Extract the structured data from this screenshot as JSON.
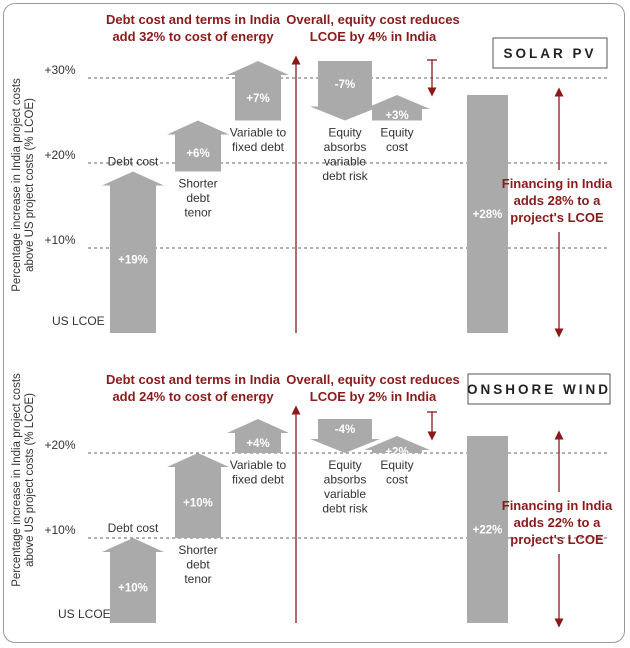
{
  "colors": {
    "bar": "#aaaaaa",
    "annotation": "#8b1a1a",
    "grid": "#666666",
    "text": "#333333",
    "bar_label": "#ffffff"
  },
  "ylabel": [
    "Percentage increase in India project costs",
    "above US project costs (% LCOE)"
  ],
  "chart_data": [
    {
      "type": "waterfall",
      "panel_title": "SOLAR PV",
      "ylim": [
        0,
        30
      ],
      "ticks": [
        {
          "value": 10,
          "label": "+10%"
        },
        {
          "value": 20,
          "label": "+20%"
        },
        {
          "value": 30,
          "label": "+30%"
        }
      ],
      "base_label": "US LCOE",
      "steps": [
        {
          "name": [
            "Debt cost"
          ],
          "value": 19,
          "label": "+19%",
          "label_side": "above"
        },
        {
          "name": [
            "Shorter",
            "debt",
            "tenor"
          ],
          "value": 6,
          "label": "+6%",
          "label_side": "below"
        },
        {
          "name": [
            "Variable to",
            "fixed debt"
          ],
          "value": 7,
          "label": "+7%",
          "label_side": "below"
        },
        {
          "name": [
            "Equity",
            "absorbs",
            "variable",
            "debt risk"
          ],
          "value": -7,
          "label": "-7%",
          "label_side": "below"
        },
        {
          "name": [
            "Equity",
            "cost"
          ],
          "value": 3,
          "label": "+3%",
          "label_side": "below"
        }
      ],
      "total": {
        "value": 28,
        "label": "+28%"
      },
      "annotations": {
        "debt": [
          "Debt cost and terms in India",
          "add 32% to cost of energy"
        ],
        "equity": [
          "Overall, equity cost reduces",
          "LCOE by 4% in India"
        ],
        "total": [
          "Financing in India",
          "adds 28% to a",
          "project's LCOE"
        ]
      }
    },
    {
      "type": "waterfall",
      "panel_title": "ONSHORE WIND",
      "ylim": [
        0,
        24
      ],
      "ticks": [
        {
          "value": 10,
          "label": "+10%"
        },
        {
          "value": 20,
          "label": "+20%"
        }
      ],
      "base_label": "US LCOE",
      "steps": [
        {
          "name": [
            "Debt cost"
          ],
          "value": 10,
          "label": "+10%",
          "label_side": "above"
        },
        {
          "name": [
            "Shorter",
            "debt",
            "tenor"
          ],
          "value": 10,
          "label": "+10%",
          "label_side": "below"
        },
        {
          "name": [
            "Variable to",
            "fixed debt"
          ],
          "value": 4,
          "label": "+4%",
          "label_side": "below"
        },
        {
          "name": [
            "Equity",
            "absorbs",
            "variable",
            "debt risk"
          ],
          "value": -4,
          "label": "-4%",
          "label_side": "below"
        },
        {
          "name": [
            "Equity",
            "cost"
          ],
          "value": 2,
          "label": "+2%",
          "label_side": "below"
        }
      ],
      "total": {
        "value": 22,
        "label": "+22%"
      },
      "annotations": {
        "debt": [
          "Debt cost and terms in India",
          "add 24% to cost of energy"
        ],
        "equity": [
          "Overall, equity cost reduces",
          "LCOE by 2% in India"
        ],
        "total": [
          "Financing in India",
          "adds 22% to a",
          "project's LCOE"
        ]
      }
    }
  ]
}
